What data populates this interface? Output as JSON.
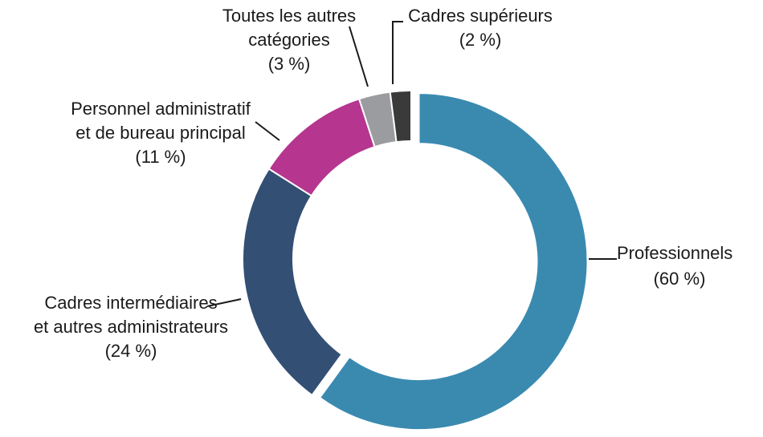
{
  "chart_data": {
    "type": "pie",
    "variant": "donut",
    "categories": [
      "Professionnels",
      "Cadres intermédiaires et autres administrateurs",
      "Personnel administratif et de bureau principal",
      "Toutes les autres catégories",
      "Cadres supérieurs"
    ],
    "values": [
      60,
      24,
      11,
      3,
      2
    ],
    "unit": "%",
    "colors": [
      "#3a8ab0",
      "#334f74",
      "#b5358f",
      "#9b9c9f",
      "#3a3a3a"
    ],
    "exploded_slice": "Professionnels",
    "labels": [
      {
        "lines": [
          "Professionnels"
        ],
        "value_text": "(60 %)"
      },
      {
        "lines": [
          "Cadres intermédiaires",
          "et autres administrateurs"
        ],
        "value_text": "(24 %)"
      },
      {
        "lines": [
          "Personnel administratif",
          "et de bureau principal"
        ],
        "value_text": "(11 %)"
      },
      {
        "lines": [
          "Toutes les autres",
          "catégories"
        ],
        "value_text": "(3 %)"
      },
      {
        "lines": [
          "Cadres supérieurs"
        ],
        "value_text": "(2 %)"
      }
    ],
    "title": "",
    "legend": "none"
  }
}
